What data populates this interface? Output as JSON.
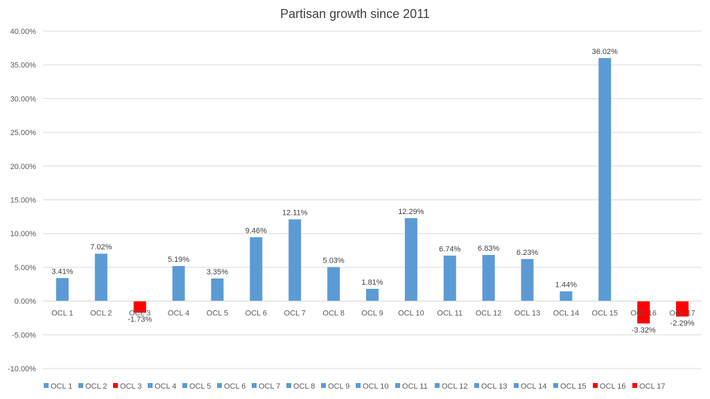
{
  "chart_data": {
    "type": "bar",
    "title": "Partisan growth since 2011",
    "xlabel": "",
    "ylabel": "",
    "ylim": [
      -10,
      40
    ],
    "yticks": [
      40,
      35,
      30,
      25,
      20,
      15,
      10,
      5,
      0,
      -5,
      -10
    ],
    "ytick_labels": [
      "40.00%",
      "35.00%",
      "30.00%",
      "25.00%",
      "20.00%",
      "15.00%",
      "10.00%",
      "5.00%",
      "0.00%",
      "-5.00%",
      "-10.00%"
    ],
    "grid": true,
    "legend_position": "bottom",
    "categories": [
      "OCL 1",
      "OCL 2",
      "OCL 3",
      "OCL 4",
      "OCL 5",
      "OCL 6",
      "OCL 7",
      "OCL 8",
      "OCL 9",
      "OCL 10",
      "OCL 11",
      "OCL 12",
      "OCL 13",
      "OCL 14",
      "OCL 15",
      "OCL 16",
      "OCL 17"
    ],
    "values": [
      3.41,
      7.02,
      -1.73,
      5.19,
      3.35,
      9.46,
      12.11,
      5.03,
      1.81,
      12.29,
      6.74,
      6.83,
      6.23,
      1.44,
      36.02,
      -3.32,
      -2.29
    ],
    "data_labels": [
      "3.41%",
      "7.02%",
      "-1.73%",
      "5.19%",
      "3.35%",
      "9.46%",
      "12.11%",
      "5.03%",
      "1.81%",
      "12.29%",
      "6.74%",
      "6.83%",
      "6.23%",
      "1.44%",
      "36.02%",
      "-3.32%",
      "-2.29%"
    ],
    "colors": {
      "positive": "#5B9BD5",
      "negative": "#FF0000"
    }
  }
}
